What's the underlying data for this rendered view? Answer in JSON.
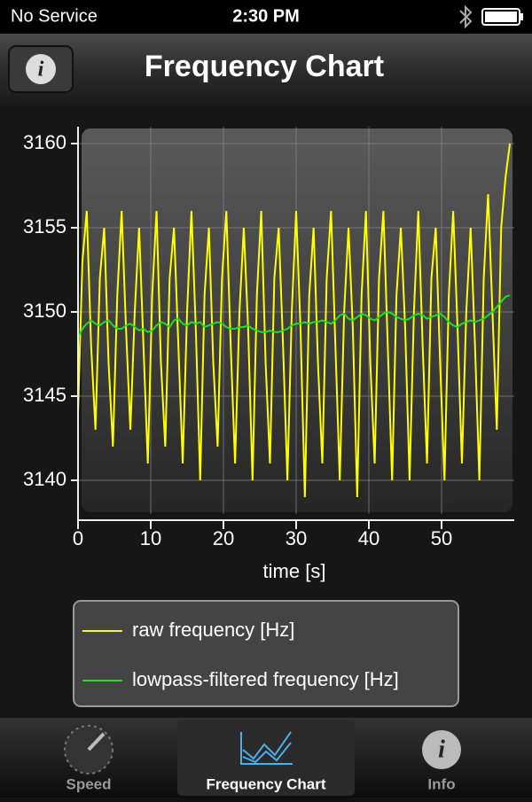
{
  "status_bar": {
    "carrier": "No Service",
    "time": "2:30 PM"
  },
  "nav_bar": {
    "title": "Frequency Chart"
  },
  "chart_data": {
    "type": "line",
    "xlabel": "time [s]",
    "x": [
      0,
      0.6,
      1.2,
      1.8,
      2.4,
      3,
      3.6,
      4.2,
      4.8,
      5.4,
      6,
      6.6,
      7.2,
      7.8,
      8.4,
      9,
      9.6,
      10.2,
      10.8,
      11.4,
      12,
      12.6,
      13.2,
      13.8,
      14.4,
      15,
      15.6,
      16.2,
      16.8,
      17.4,
      18,
      18.6,
      19.2,
      19.8,
      20.4,
      21,
      21.6,
      22.2,
      22.8,
      23.4,
      24,
      24.6,
      25.2,
      25.8,
      26.4,
      27,
      27.6,
      28.2,
      28.8,
      29.4,
      30,
      30.6,
      31.2,
      31.8,
      32.4,
      33,
      33.6,
      34.2,
      34.8,
      35.4,
      36,
      36.6,
      37.2,
      37.8,
      38.4,
      39,
      39.6,
      40.2,
      40.8,
      41.4,
      42,
      42.6,
      43.2,
      43.8,
      44.4,
      45,
      45.6,
      46.2,
      46.8,
      47.4,
      48,
      48.6,
      49.2,
      49.8,
      50.4,
      51,
      51.6,
      52.2,
      52.8,
      53.4,
      54,
      54.6,
      55.2,
      55.8,
      56.4,
      57,
      57.6,
      58.2,
      58.8,
      59.4
    ],
    "series": [
      {
        "name": "raw frequency [Hz]",
        "color": "#ffff00",
        "values": [
          3144,
          3153,
          3156,
          3148,
          3143,
          3152,
          3155,
          3147,
          3142,
          3151,
          3156,
          3149,
          3143,
          3150,
          3155,
          3148,
          3141,
          3151,
          3156,
          3147,
          3142,
          3152,
          3155,
          3148,
          3141,
          3150,
          3156,
          3149,
          3140,
          3151,
          3155,
          3147,
          3142,
          3152,
          3156,
          3148,
          3141,
          3150,
          3155,
          3149,
          3140,
          3151,
          3156,
          3147,
          3141,
          3152,
          3155,
          3148,
          3140,
          3150,
          3156,
          3149,
          3139,
          3151,
          3155,
          3147,
          3141,
          3152,
          3156,
          3148,
          3140,
          3150,
          3155,
          3149,
          3139,
          3151,
          3156,
          3147,
          3141,
          3152,
          3156,
          3148,
          3140,
          3151,
          3155,
          3149,
          3140,
          3150,
          3156,
          3148,
          3141,
          3152,
          3155,
          3147,
          3140,
          3151,
          3156,
          3149,
          3141,
          3150,
          3155,
          3148,
          3140,
          3152,
          3157,
          3150,
          3143,
          3155,
          3158,
          3160
        ]
      },
      {
        "name": "lowpass-filtered frequency [Hz]",
        "color": "#22dd22",
        "values": [
          3148.5,
          3149,
          3149.3,
          3149.5,
          3149.3,
          3149.2,
          3149.4,
          3149.5,
          3149.2,
          3149,
          3149,
          3149.2,
          3149.3,
          3149.1,
          3148.9,
          3149,
          3148.8,
          3148.9,
          3149.2,
          3149.4,
          3149.3,
          3149.1,
          3149.5,
          3149.6,
          3149.3,
          3149.2,
          3149.4,
          3149.3,
          3149.4,
          3149.1,
          3149.2,
          3149.3,
          3149.4,
          3149.3,
          3149.1,
          3149,
          3149,
          3149.1,
          3149.1,
          3149.2,
          3149,
          3148.9,
          3148.8,
          3148.8,
          3148.9,
          3148.8,
          3148.8,
          3148.9,
          3149,
          3149.2,
          3149.3,
          3149.3,
          3149.4,
          3149.3,
          3149.4,
          3149.4,
          3149.5,
          3149.4,
          3149.3,
          3149.5,
          3149.8,
          3149.9,
          3149.6,
          3149.5,
          3149.7,
          3149.9,
          3149.8,
          3149.6,
          3149.5,
          3149.7,
          3149.9,
          3150,
          3149.9,
          3149.7,
          3149.6,
          3149.5,
          3149.6,
          3149.8,
          3149.9,
          3149.8,
          3149.6,
          3149.7,
          3149.8,
          3149.9,
          3149.7,
          3149.4,
          3149.2,
          3149.1,
          3149.3,
          3149.4,
          3149.5,
          3149.4,
          3149.5,
          3149.6,
          3149.8,
          3150,
          3150.3,
          3150.6,
          3150.9,
          3151
        ]
      }
    ],
    "xlim": [
      0,
      60
    ],
    "ylim": [
      3138,
      3161
    ],
    "xticks": [
      0,
      10,
      20,
      30,
      40,
      50
    ],
    "yticks": [
      3140,
      3145,
      3150,
      3155,
      3160
    ],
    "grid": true
  },
  "tab_bar": {
    "items": [
      "Speed",
      "Frequency Chart",
      "Info"
    ]
  }
}
